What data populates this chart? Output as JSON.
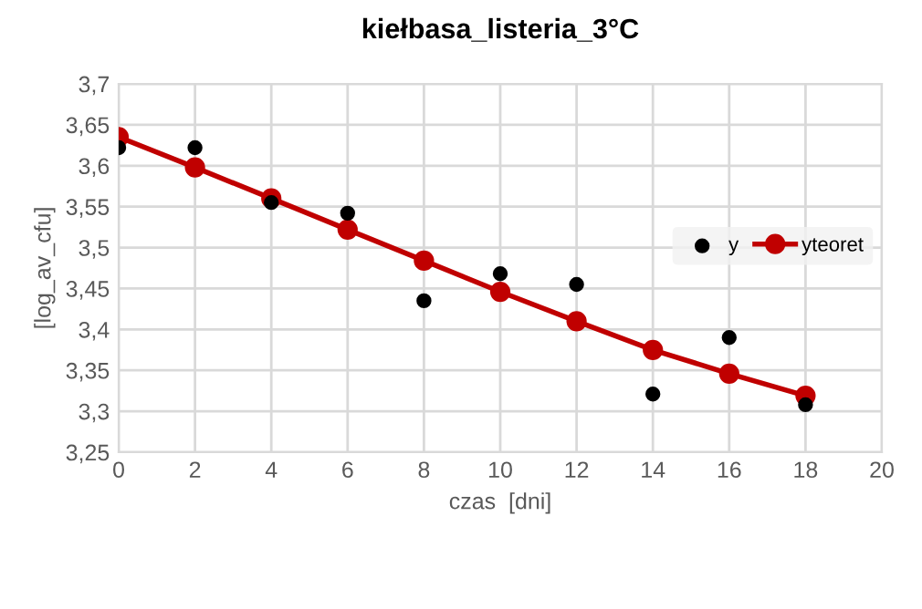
{
  "chart_data": {
    "type": "scatter",
    "title": "kiełbasa_listeria_3°C",
    "xlabel": "czas  [dni]",
    "ylabel": "[log_av_cfu]",
    "x": [
      0,
      2,
      4,
      6,
      8,
      10,
      12,
      14,
      16,
      18
    ],
    "series": [
      {
        "name": "y",
        "color": "#000000",
        "marker": "circle",
        "values": [
          3.622,
          3.622,
          3.555,
          3.542,
          3.435,
          3.468,
          3.455,
          3.321,
          3.39,
          3.308
        ]
      },
      {
        "name": "yteoret",
        "type": "line",
        "color": "#c00000",
        "marker": "circle",
        "line_style": "solid",
        "values": [
          3.635,
          3.598,
          3.56,
          3.522,
          3.484,
          3.446,
          3.41,
          3.375,
          3.346,
          3.319
        ]
      }
    ],
    "xlim": [
      0,
      20
    ],
    "xticks": [
      0,
      2,
      4,
      6,
      8,
      10,
      12,
      14,
      16,
      18,
      20
    ],
    "ylim": [
      3.25,
      3.7
    ],
    "yticks": [
      {
        "value": 3.25,
        "label": "3,25"
      },
      {
        "value": 3.3,
        "label": "3,3"
      },
      {
        "value": 3.35,
        "label": "3,35"
      },
      {
        "value": 3.4,
        "label": "3,4"
      },
      {
        "value": 3.45,
        "label": "3,45"
      },
      {
        "value": 3.5,
        "label": "3,5"
      },
      {
        "value": 3.55,
        "label": "3,55"
      },
      {
        "value": 3.6,
        "label": "3,6"
      },
      {
        "value": 3.65,
        "label": "3,65"
      },
      {
        "value": 3.7,
        "label": "3,7"
      }
    ],
    "grid": true,
    "legend": "right"
  }
}
